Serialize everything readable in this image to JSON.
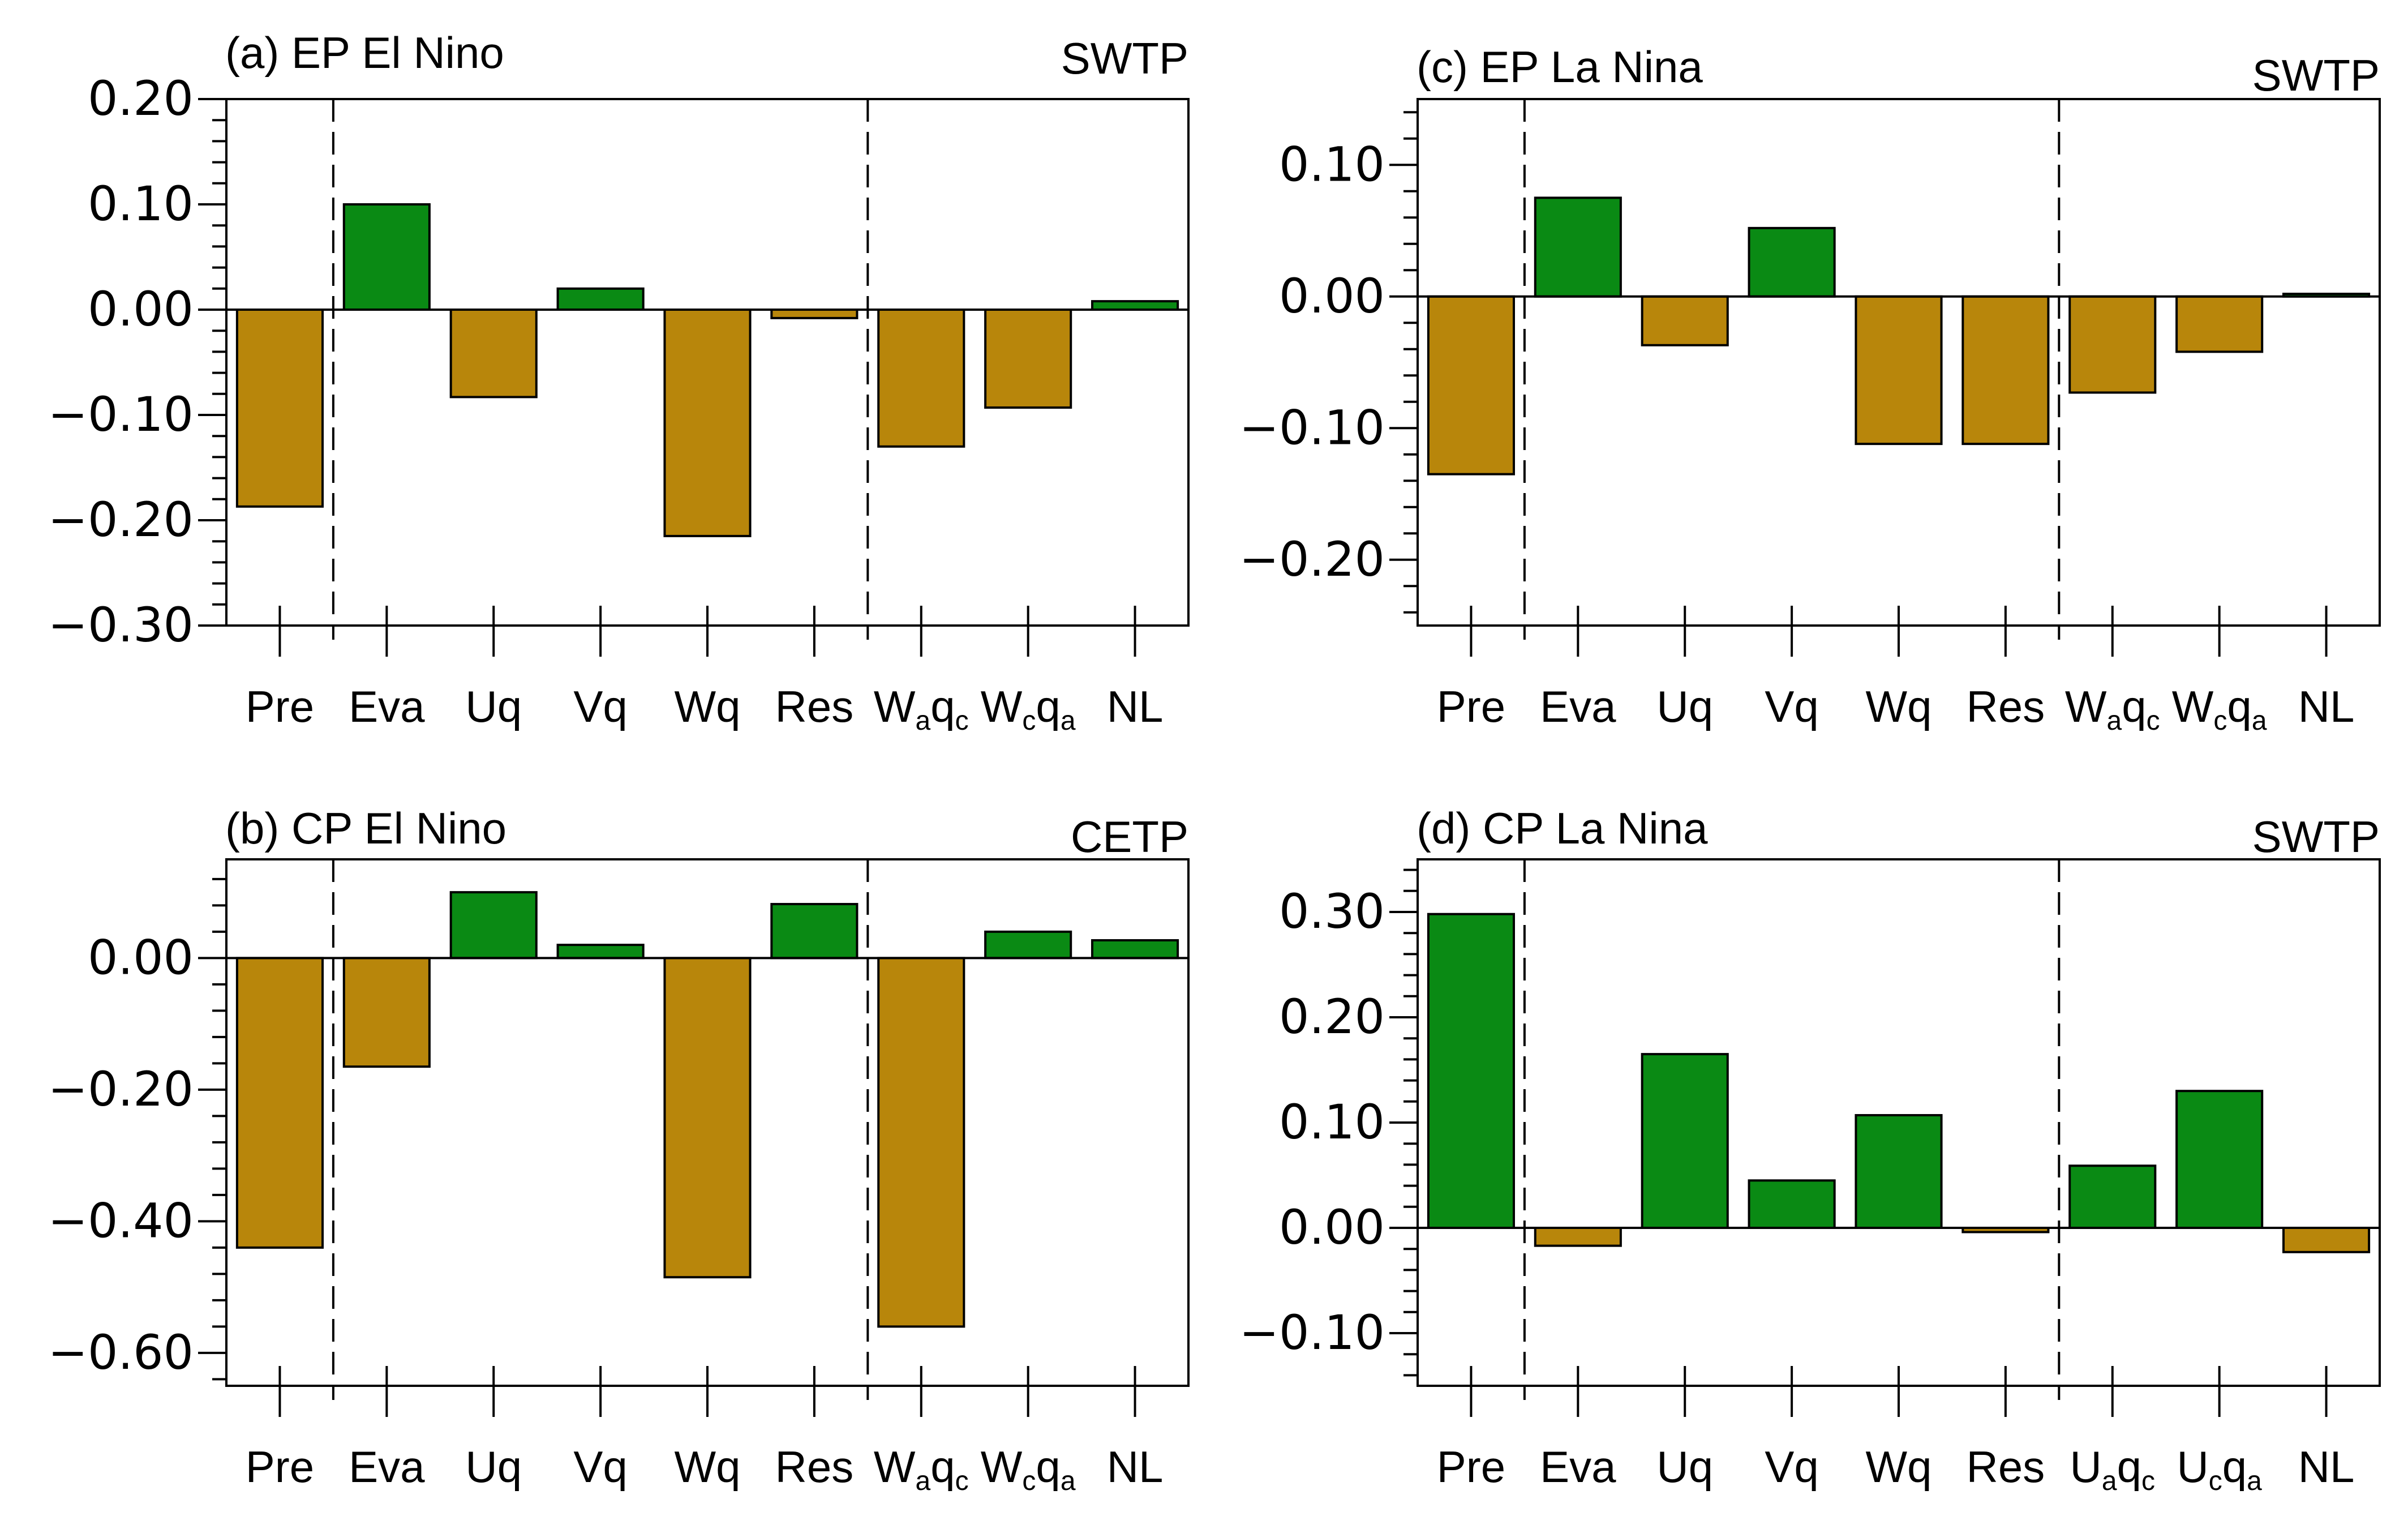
{
  "colors": {
    "positive": "#0a8a14",
    "negative": "#b8860b"
  },
  "chart_data": [
    {
      "type": "bar",
      "title": "(a) EP El Nino",
      "region": "SWTP",
      "categories": [
        "Pre",
        "Eva",
        "Uq",
        "Vq",
        "Wq",
        "Res",
        "W|a|q|c",
        "W|c|q|a",
        "NL"
      ],
      "values": [
        -0.187,
        0.1,
        -0.083,
        0.02,
        -0.215,
        -0.008,
        -0.13,
        -0.093,
        0.008
      ],
      "ylim": [
        -0.3,
        0.2
      ],
      "yticks": [
        0.2,
        0.1,
        0.0,
        -0.1,
        -0.2,
        -0.3
      ],
      "ytick_labels": [
        "0.20",
        "0.10",
        "0.00",
        "−0.10",
        "−0.20",
        "−0.30"
      ],
      "minor_step": 0.02,
      "dividers_after": [
        1,
        6
      ]
    },
    {
      "type": "bar",
      "title": "(c) EP La Nina",
      "region": "SWTP",
      "categories": [
        "Pre",
        "Eva",
        "Uq",
        "Vq",
        "Wq",
        "Res",
        "W|a|q|c",
        "W|c|q|a",
        "NL"
      ],
      "values": [
        -0.135,
        0.075,
        -0.037,
        0.052,
        -0.112,
        -0.112,
        -0.073,
        -0.042,
        0.002
      ],
      "ylim": [
        -0.25,
        0.15
      ],
      "yticks": [
        0.1,
        0.0,
        -0.1,
        -0.2
      ],
      "ytick_labels": [
        "0.10",
        "0.00",
        "−0.10",
        "−0.20"
      ],
      "minor_step": 0.02,
      "dividers_after": [
        1,
        6
      ]
    },
    {
      "type": "bar",
      "title": "(b) CP El Nino",
      "region": "CETP",
      "categories": [
        "Pre",
        "Eva",
        "Uq",
        "Vq",
        "Wq",
        "Res",
        "W|a|q|c",
        "W|c|q|a",
        "NL"
      ],
      "values": [
        -0.44,
        -0.165,
        0.1,
        0.02,
        -0.485,
        0.082,
        -0.56,
        0.04,
        0.027
      ],
      "ylim": [
        -0.65,
        0.15
      ],
      "yticks": [
        0.0,
        -0.2,
        -0.4,
        -0.6
      ],
      "ytick_labels": [
        "0.00",
        "−0.20",
        "−0.40",
        "−0.60"
      ],
      "minor_step": 0.04,
      "dividers_after": [
        1,
        6
      ]
    },
    {
      "type": "bar",
      "title": "(d) CP La Nina",
      "region": "SWTP",
      "categories": [
        "Pre",
        "Eva",
        "Uq",
        "Vq",
        "Wq",
        "Res",
        "U|a|q|c",
        "U|c|q|a",
        "NL"
      ],
      "values": [
        0.298,
        -0.017,
        0.165,
        0.045,
        0.107,
        -0.004,
        0.059,
        0.13,
        -0.023
      ],
      "ylim": [
        -0.15,
        0.35
      ],
      "yticks": [
        0.3,
        0.2,
        0.1,
        0.0,
        -0.1
      ],
      "ytick_labels": [
        "0.30",
        "0.20",
        "0.10",
        "0.00",
        "−0.10"
      ],
      "minor_step": 0.02,
      "dividers_after": [
        1,
        6
      ]
    }
  ]
}
